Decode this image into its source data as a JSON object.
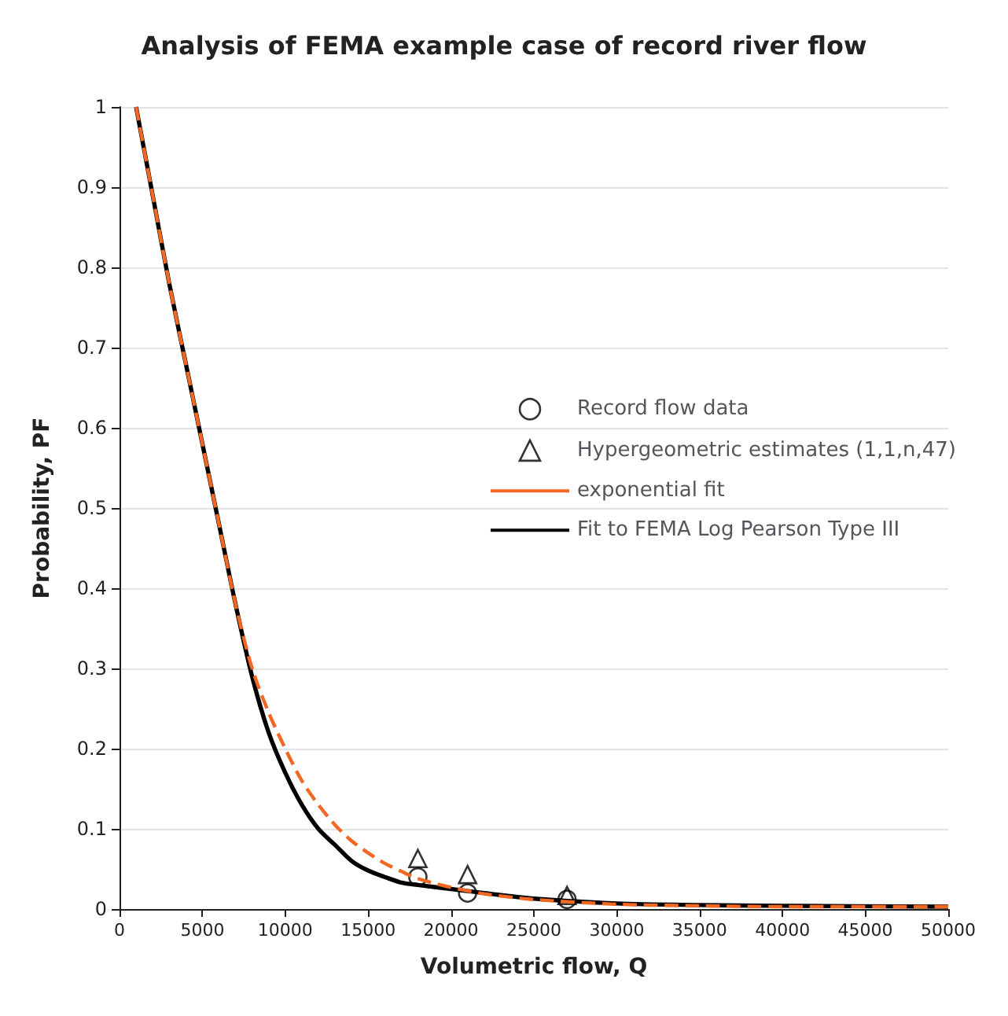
{
  "chart_data": {
    "type": "line",
    "title": "Analysis of FEMA example case of record river flow",
    "xlabel": "Volumetric flow, Q",
    "ylabel": "Probability, PF",
    "xlim": [
      0,
      50000
    ],
    "xticks": [
      0,
      5000,
      10000,
      15000,
      20000,
      25000,
      30000,
      35000,
      40000,
      45000,
      50000
    ],
    "ylim": [
      0,
      1
    ],
    "yticks": [
      0,
      0.1,
      0.2,
      0.3,
      0.4,
      0.5,
      0.6,
      0.7,
      0.8,
      0.9,
      1
    ],
    "grid": "y",
    "legend": "right",
    "series": [
      {
        "name": "Record flow data",
        "type": "scatter",
        "marker": "circle",
        "color": "#000000",
        "x": [
          18000,
          21000,
          27000
        ],
        "values": [
          0.04,
          0.02,
          0.012
        ]
      },
      {
        "name": "Hypergeometric estimates (1,1,n,47)",
        "type": "scatter",
        "marker": "triangle",
        "color": "#000000",
        "x": [
          18000,
          21000,
          27000
        ],
        "values": [
          0.063,
          0.043,
          0.017
        ]
      },
      {
        "name": "exponential fit",
        "line_style": "dashed",
        "color": "#f26722",
        "x": [
          1000,
          2000,
          3000,
          4000,
          5000,
          6000,
          7000,
          8000,
          9000,
          10000,
          11000,
          12000,
          13000,
          14000,
          15000,
          16000,
          17000,
          18000,
          20000,
          22000,
          25000,
          30000,
          35000,
          40000,
          50000
        ],
        "values": [
          1.0,
          0.89,
          0.78,
          0.68,
          0.58,
          0.48,
          0.38,
          0.3,
          0.245,
          0.2,
          0.16,
          0.13,
          0.105,
          0.085,
          0.07,
          0.057,
          0.047,
          0.038,
          0.027,
          0.019,
          0.012,
          0.006,
          0.004,
          0.003,
          0.003
        ]
      },
      {
        "name": "Fit to FEMA Log Pearson Type III",
        "line_style": "solid",
        "color": "#000000",
        "x": [
          1000,
          2000,
          3000,
          4000,
          5000,
          6000,
          7000,
          8000,
          9000,
          10000,
          11000,
          12000,
          13000,
          14000,
          15000,
          16000,
          17000,
          18000,
          20000,
          22000,
          25000,
          30000,
          35000,
          40000,
          50000
        ],
        "values": [
          1.0,
          0.89,
          0.78,
          0.68,
          0.58,
          0.48,
          0.38,
          0.29,
          0.22,
          0.17,
          0.13,
          0.1,
          0.08,
          0.06,
          0.048,
          0.04,
          0.033,
          0.03,
          0.025,
          0.02,
          0.013,
          0.007,
          0.005,
          0.004,
          0.003
        ]
      }
    ]
  }
}
